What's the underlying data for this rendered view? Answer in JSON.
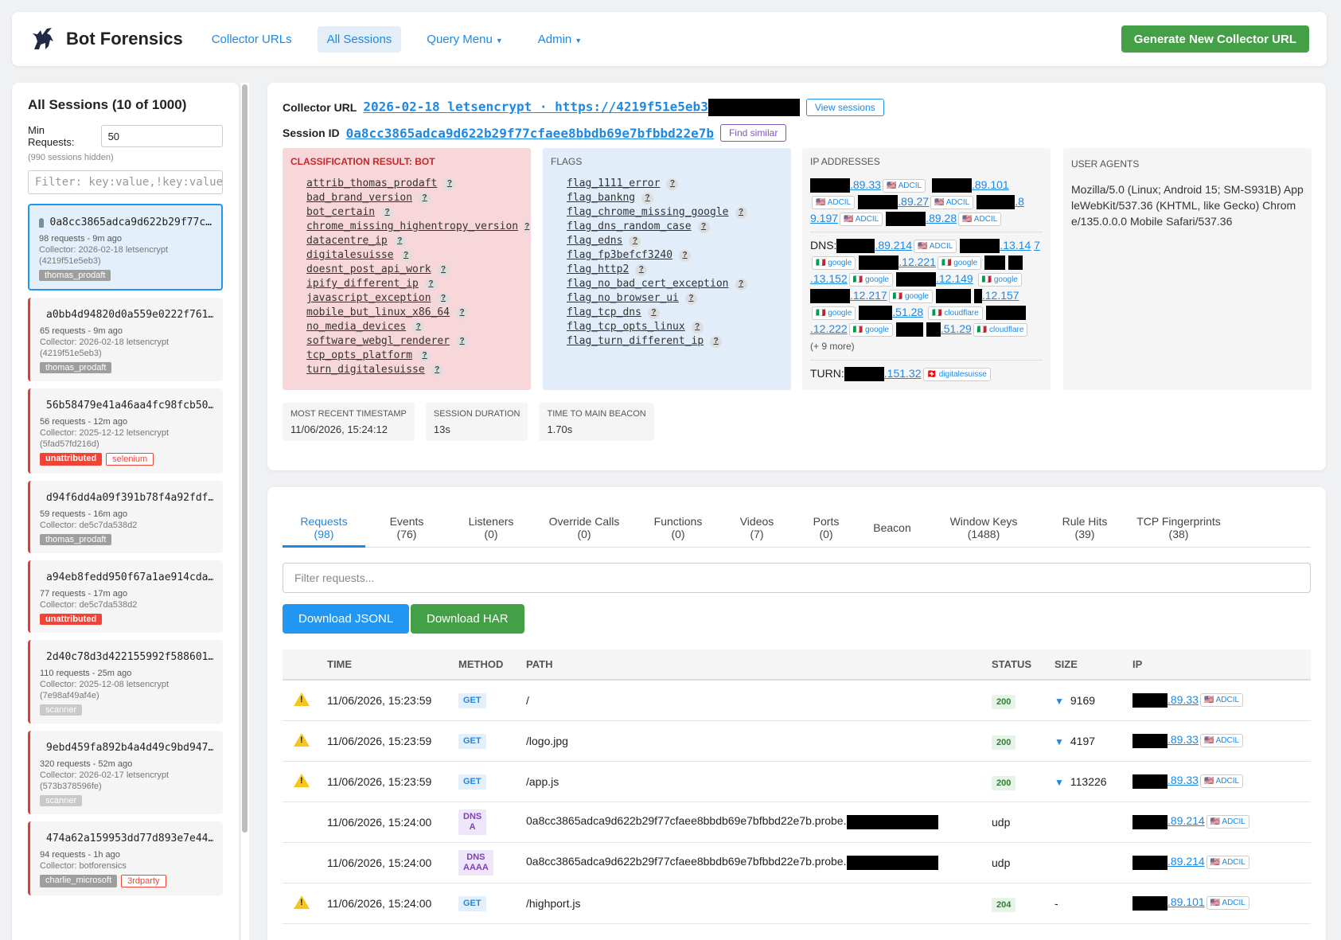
{
  "nav": {
    "brand": "Bot Forensics",
    "items": [
      "Collector URLs",
      "All Sessions",
      "Query Menu",
      "Admin"
    ],
    "generate": "Generate New Collector URL"
  },
  "sidebar": {
    "title": "All Sessions (10 of 1000)",
    "min_requests_label": "Min Requests:",
    "min_requests_value": "50",
    "hidden_note": "(990 sessions hidden)",
    "filter_placeholder": "Filter: key:value,!key:value,",
    "sessions": [
      {
        "id": "0a8cc3865adca9d622b29f77c…",
        "requests": "98 requests - 9m ago",
        "collector": "Collector: 2026-02-18 letsencrypt",
        "sub": "(4219f51e5eb3)",
        "tags": [
          "thomas_prodaft"
        ]
      },
      {
        "id": "a0bb4d94820d0a559e0222f761…",
        "requests": "65 requests - 9m ago",
        "collector": "Collector: 2026-02-18 letsencrypt",
        "sub": "(4219f51e5eb3)",
        "tags": [
          "thomas_prodaft"
        ]
      },
      {
        "id": "56b58479e41a46aa4fc98fcb50…",
        "requests": "56 requests - 12m ago",
        "collector": "Collector: 2025-12-12 letsencrypt",
        "sub": "(5fad57fd216d)",
        "tags": [
          "unattributed",
          "selenium"
        ]
      },
      {
        "id": "d94f6dd4a09f391b78f4a92fdf…",
        "requests": "59 requests - 16m ago",
        "collector": "Collector: de5c7da538d2",
        "sub": "",
        "tags": [
          "thomas_prodaft"
        ]
      },
      {
        "id": "a94eb8fedd950f67a1ae914cda…",
        "requests": "77 requests - 17m ago",
        "collector": "Collector: de5c7da538d2",
        "sub": "",
        "tags": [
          "unattributed"
        ]
      },
      {
        "id": "2d40c78d3d422155992f588601…",
        "requests": "110 requests - 25m ago",
        "collector": "Collector: 2025-12-08 letsencrypt",
        "sub": "(7e98af49af4e)",
        "tags": [
          "scanner"
        ]
      },
      {
        "id": "9ebd459fa892b4a4d49c9bd947…",
        "requests": "320 requests - 52m ago",
        "collector": "Collector: 2026-02-17 letsencrypt",
        "sub": "(573b378596fe)",
        "tags": [
          "scanner"
        ]
      },
      {
        "id": "474a62a159953dd77d893e7e44…",
        "requests": "94 requests - 1h ago",
        "collector": "Collector: botforensics",
        "sub": "",
        "tags": [
          "charlie_microsoft",
          "3rdparty"
        ]
      }
    ]
  },
  "session": {
    "collector_label": "Collector URL",
    "collector_value": "2026-02-18 letsencrypt · https://4219f51e5eb3",
    "view_sessions": "View sessions",
    "session_label": "Session ID",
    "session_value": "0a8cc3865adca9d622b29f77cfaee8bbdb69e7bfbbd22e7b",
    "find_similar": "Find similar",
    "classification_title": "CLASSIFICATION RESULT: BOT",
    "classification": [
      "attrib_thomas_prodaft",
      "bad_brand_version",
      "bot_certain",
      "chrome_missing_highentropy_version",
      "datacentre_ip",
      "digitalesuisse",
      "doesnt_post_api_work",
      "ipify_different_ip",
      "javascript_exception",
      "mobile_but_linux_x86_64",
      "no_media_devices",
      "software_webgl_renderer",
      "tcp_opts_platform",
      "turn_digitalesuisse"
    ],
    "flags_title": "FLAGS",
    "flags": [
      "flag_1111_error",
      "flag_bankng",
      "flag_chrome_missing_google",
      "flag_dns_random_case",
      "flag_edns",
      "flag_fp3befcf3240",
      "flag_http2",
      "flag_no_bad_cert_exception",
      "flag_no_browser_ui",
      "flag_tcp_dns",
      "flag_tcp_opts_linux",
      "flag_turn_different_ip"
    ],
    "ip_title": "IP ADDRESSES",
    "dns_label": "DNS:",
    "more": "(+ 9 more)",
    "turn_label": "TURN:",
    "ua_title": "USER AGENTS",
    "ua": "Mozilla/5.0 (Linux; Android 15; SM-S931B) AppleWebKit/537.36 (KHTML, like Gecko) Chrome/135.0.0.0 Mobile Safari/537.36",
    "stats": [
      {
        "k": "MOST RECENT TIMESTAMP",
        "v": "11/06/2026, 15:24:12"
      },
      {
        "k": "SESSION DURATION",
        "v": "13s"
      },
      {
        "k": "TIME TO MAIN BEACON",
        "v": "1.70s"
      }
    ]
  },
  "tabs": [
    {
      "label": "Requests",
      "count": "(98)"
    },
    {
      "label": "Events",
      "count": "(76)"
    },
    {
      "label": "Listeners",
      "count": "(0)"
    },
    {
      "label": "Override Calls",
      "count": "(0)"
    },
    {
      "label": "Functions",
      "count": "(0)"
    },
    {
      "label": "Videos",
      "count": "(7)"
    },
    {
      "label": "Ports",
      "count": "(0)"
    },
    {
      "label": "Beacon",
      "count": ""
    },
    {
      "label": "Window Keys",
      "count": "(1488)"
    },
    {
      "label": "Rule Hits",
      "count": "(39)"
    },
    {
      "label": "TCP Fingerprints",
      "count": "(38)"
    }
  ],
  "requests": {
    "filter_placeholder": "Filter requests...",
    "download_jsonl": "Download JSONL",
    "download_har": "Download HAR",
    "headers": [
      "TIME",
      "METHOD",
      "PATH",
      "STATUS",
      "SIZE",
      "IP"
    ],
    "rows": [
      {
        "time": "11/06/2026, 15:23:59",
        "method": "GET",
        "path": "/",
        "status": "200",
        "size": "9169",
        "ip": ".89.33",
        "org": "ADCIL"
      },
      {
        "time": "11/06/2026, 15:23:59",
        "method": "GET",
        "path": "/logo.jpg",
        "status": "200",
        "size": "4197",
        "ip": ".89.33",
        "org": "ADCIL"
      },
      {
        "time": "11/06/2026, 15:23:59",
        "method": "GET",
        "path": "/app.js",
        "status": "200",
        "size": "113226",
        "ip": ".89.33",
        "org": "ADCIL"
      },
      {
        "time": "11/06/2026, 15:24:00",
        "method": "DNS A",
        "path": "0a8cc3865adca9d622b29f77cfaee8bbdb69e7bfbbd22e7b.probe.",
        "status": "udp",
        "size": "",
        "ip": ".89.214",
        "org": "ADCIL"
      },
      {
        "time": "11/06/2026, 15:24:00",
        "method": "DNS AAAA",
        "path": "0a8cc3865adca9d622b29f77cfaee8bbdb69e7bfbbd22e7b.probe.",
        "status": "udp",
        "size": "",
        "ip": ".89.214",
        "org": "ADCIL"
      },
      {
        "time": "11/06/2026, 15:24:00",
        "method": "GET",
        "path": "/highport.js",
        "status": "204",
        "size": "-",
        "ip": ".89.101",
        "org": "ADCIL"
      }
    ]
  }
}
